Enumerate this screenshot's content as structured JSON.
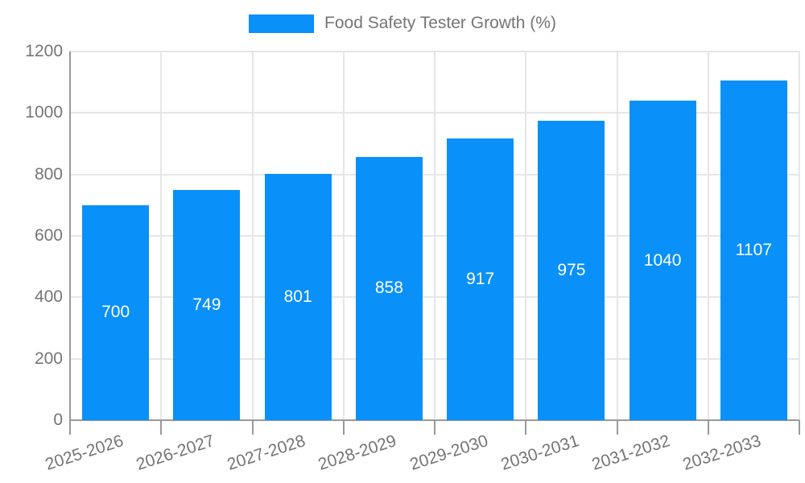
{
  "chart_data": {
    "type": "bar",
    "title": "Food Safety Tester Growth (%)",
    "categories": [
      "2025-2026",
      "2026-2027",
      "2027-2028",
      "2028-2029",
      "2029-2030",
      "2030-2031",
      "2031-2032",
      "2032-2033"
    ],
    "values": [
      700,
      749,
      801,
      858,
      917,
      975,
      1040,
      1107
    ],
    "xlabel": "",
    "ylabel": "",
    "ylim": [
      0,
      1200
    ],
    "yticks": [
      0,
      200,
      400,
      600,
      800,
      1000,
      1200
    ],
    "grid": true,
    "legend_position": "top-center",
    "x_label_rotation_deg": -18,
    "bar_color": "#0990F9",
    "bar_label_color": "#FFFFFF",
    "grid_color": "#E6E6E6",
    "axis_color": "#999999",
    "tick_label_color": "#757575"
  }
}
